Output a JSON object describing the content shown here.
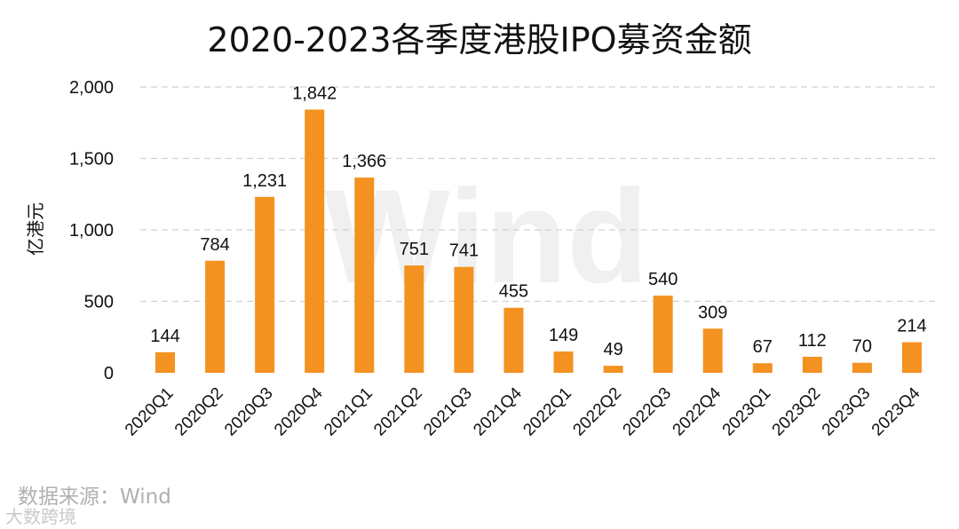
{
  "chart_data": {
    "type": "bar",
    "title": "2020-2023各季度港股IPO募资金额",
    "ylabel": "亿港元",
    "xlabel": "",
    "ylim": [
      0,
      2000
    ],
    "yticks": [
      0,
      500,
      1000,
      1500,
      2000
    ],
    "ytick_labels": [
      "0",
      "500",
      "1,000",
      "1,500",
      "2,000"
    ],
    "grid": true,
    "bar_color": "#f39221",
    "categories": [
      "2020Q1",
      "2020Q2",
      "2020Q3",
      "2020Q4",
      "2021Q1",
      "2021Q2",
      "2021Q3",
      "2021Q4",
      "2022Q1",
      "2022Q2",
      "2022Q3",
      "2022Q4",
      "2023Q1",
      "2023Q2",
      "2023Q3",
      "2023Q4"
    ],
    "values": [
      144,
      784,
      1231,
      1842,
      1366,
      751,
      741,
      455,
      149,
      49,
      540,
      309,
      67,
      112,
      70,
      214
    ],
    "data_labels": [
      "144",
      "784",
      "1,231",
      "1,842",
      "1,366",
      "751",
      "741",
      "455",
      "149",
      "49",
      "540",
      "309",
      "67",
      "112",
      "70",
      "214"
    ]
  },
  "watermark": "Wind",
  "footer": {
    "source": "数据来源：Wind",
    "brand": "大数跨境"
  }
}
